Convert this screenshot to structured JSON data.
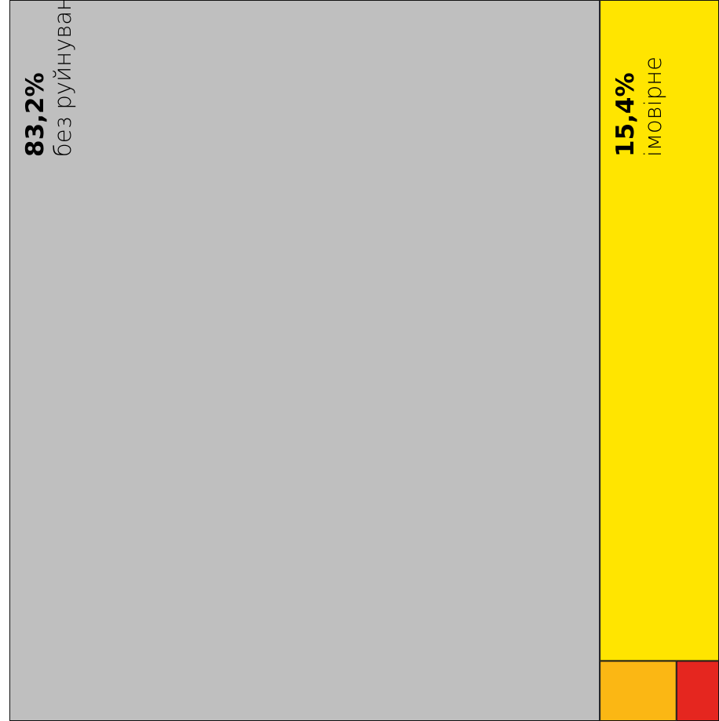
{
  "chart_data": {
    "type": "treemap",
    "categories": [
      "без руйнувань",
      "імовірне",
      null,
      null
    ],
    "values": [
      83.2,
      15.4,
      0.9,
      0.5
    ],
    "value_labels": [
      "83,2%",
      "15,4%",
      null,
      null
    ],
    "colors": [
      "#bfbfbf",
      "#ffe500",
      "#fbb714",
      "#e5261f"
    ]
  }
}
